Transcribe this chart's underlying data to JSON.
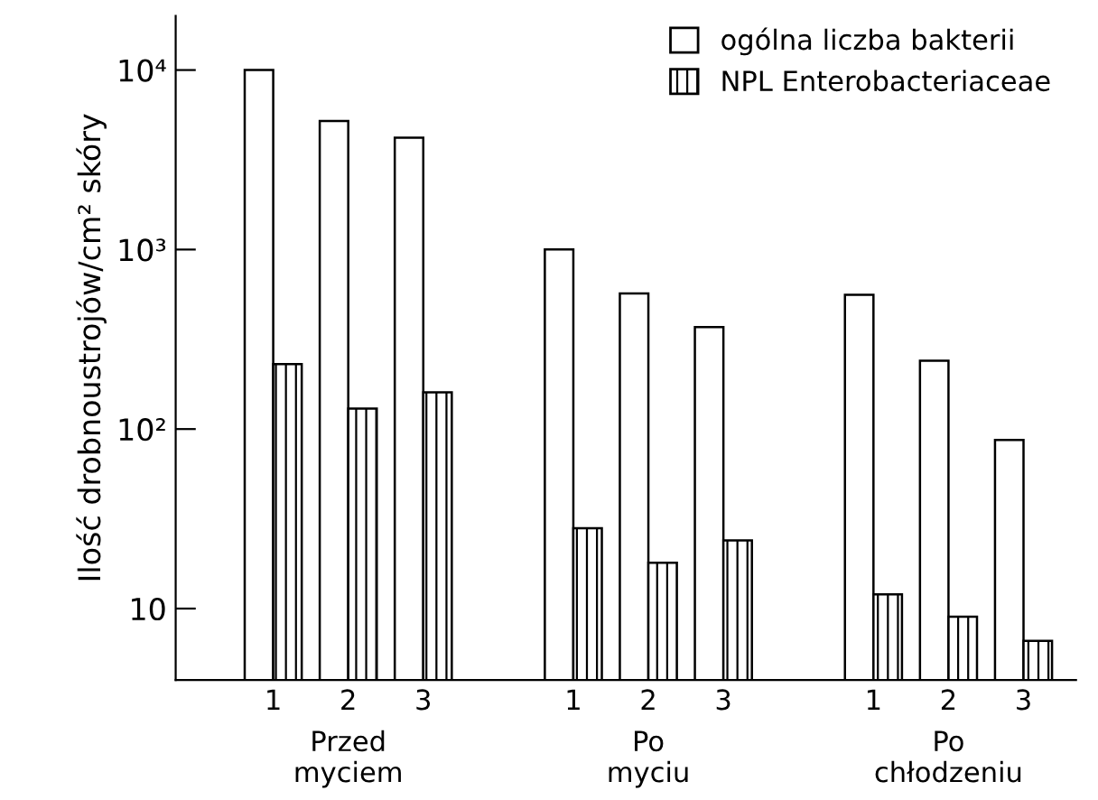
{
  "chart_data": {
    "type": "bar",
    "ylabel": "Ilość drobnoustrojów/cm² skóry",
    "categories": [
      "1",
      "2",
      "3",
      null,
      "1",
      "2",
      "3",
      null,
      "1",
      "2",
      "3"
    ],
    "series": [
      {
        "name": "ogólna liczba bakterii",
        "color": "#ffffff",
        "values": [
          10000,
          5200,
          4200,
          null,
          1000,
          570,
          370,
          null,
          560,
          240,
          87
        ]
      },
      {
        "name": "NPL Enterobacteriaceae",
        "color": "#000000",
        "values": [
          230,
          130,
          160,
          null,
          28,
          18,
          24,
          null,
          12,
          9,
          6.6
        ]
      }
    ],
    "log": "y",
    "ylim": [
      4,
      20000
    ],
    "yticks": [
      10,
      {
        "value": 100,
        "label": "10²"
      },
      {
        "value": 1000,
        "label": "10³"
      },
      {
        "value": 10000,
        "label": "10⁴"
      }
    ],
    "annotations": [
      "Przed\nmyciem",
      "Po\nmyciu",
      "Po\nchłodzeniu"
    ],
    "grid": false,
    "legend": "top right"
  }
}
